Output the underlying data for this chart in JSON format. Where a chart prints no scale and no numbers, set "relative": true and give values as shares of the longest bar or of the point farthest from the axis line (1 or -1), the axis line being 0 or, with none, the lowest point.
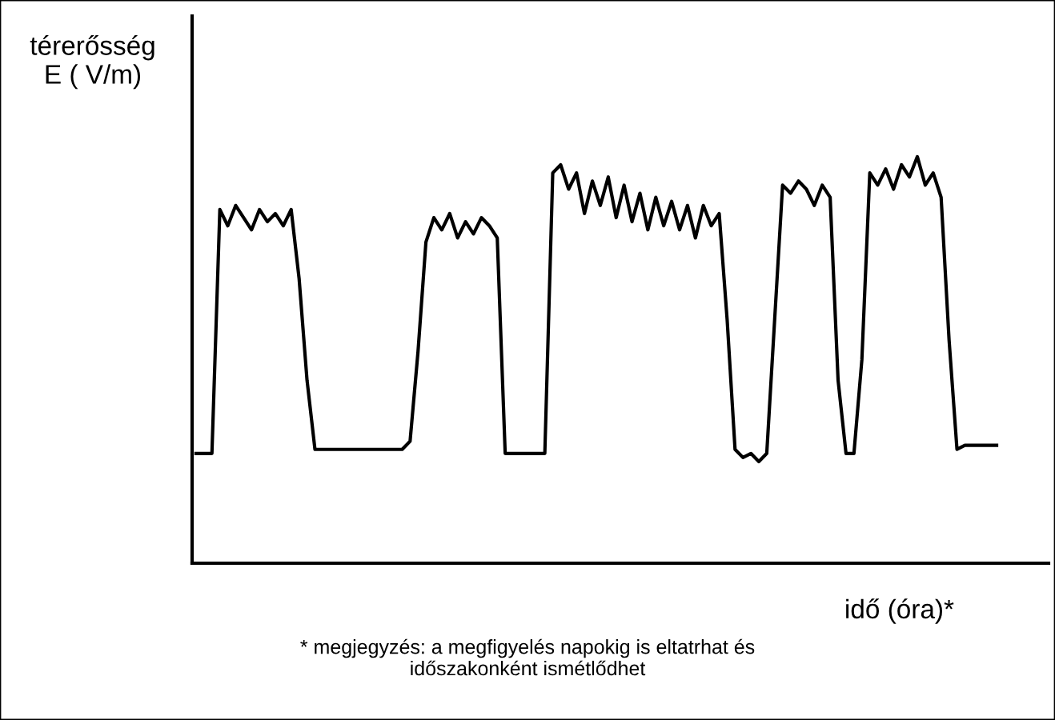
{
  "chart_data": {
    "type": "line",
    "relative": true,
    "ylabel": "térerősség\nE ( V/m)",
    "xlabel": "idő (óra)*",
    "annotations": [
      "* megjegyzés: a megfigyelés napokig is eltatrhat és\nidőszakonként ismétlődhet"
    ],
    "categories": [
      null,
      null,
      null,
      null,
      null,
      null,
      null,
      null,
      null,
      null,
      null,
      null,
      null,
      null,
      null,
      null,
      null,
      null,
      null,
      null,
      null,
      null,
      null,
      null,
      null,
      null,
      null,
      null,
      null,
      null,
      null,
      null,
      null,
      null,
      null,
      null,
      null,
      null,
      null,
      null,
      null,
      null,
      null,
      null,
      null,
      null,
      null,
      null,
      null,
      null,
      null,
      null,
      null,
      null,
      null,
      null,
      null,
      null,
      null,
      null,
      null,
      null,
      null,
      null,
      null,
      null,
      null,
      null,
      null,
      null,
      null,
      null,
      null,
      null,
      null,
      null,
      null,
      null,
      null,
      null,
      null,
      null,
      null,
      null,
      null,
      null,
      null,
      null,
      null,
      null,
      null,
      null,
      null,
      null,
      null,
      null,
      null,
      null,
      null,
      null,
      null,
      null
    ],
    "series": [
      {
        "color": "#000000",
        "values": [
          0.27,
          0.27,
          0.27,
          0.87,
          0.83,
          0.88,
          0.85,
          0.82,
          0.87,
          0.84,
          0.86,
          0.83,
          0.87,
          0.7,
          0.45,
          0.28,
          0.28,
          0.28,
          0.28,
          0.28,
          0.28,
          0.28,
          0.28,
          0.28,
          0.28,
          0.28,
          0.28,
          0.3,
          0.52,
          0.79,
          0.85,
          0.82,
          0.86,
          0.8,
          0.84,
          0.81,
          0.85,
          0.83,
          0.8,
          0.27,
          0.27,
          0.27,
          0.27,
          0.27,
          0.27,
          0.96,
          0.98,
          0.92,
          0.96,
          0.86,
          0.94,
          0.88,
          0.95,
          0.85,
          0.93,
          0.84,
          0.91,
          0.82,
          0.9,
          0.83,
          0.89,
          0.82,
          0.88,
          0.8,
          0.88,
          0.83,
          0.86,
          0.6,
          0.28,
          0.26,
          0.27,
          0.25,
          0.27,
          0.6,
          0.93,
          0.91,
          0.94,
          0.92,
          0.88,
          0.93,
          0.9,
          0.45,
          0.27,
          0.27,
          0.5,
          0.96,
          0.93,
          0.97,
          0.92,
          0.98,
          0.95,
          1.0,
          0.93,
          0.96,
          0.9,
          0.55,
          0.28,
          0.29,
          0.29,
          0.29,
          0.29,
          0.29
        ]
      }
    ],
    "grid": false,
    "legend": false,
    "marker": "none",
    "line_style": "solid"
  }
}
